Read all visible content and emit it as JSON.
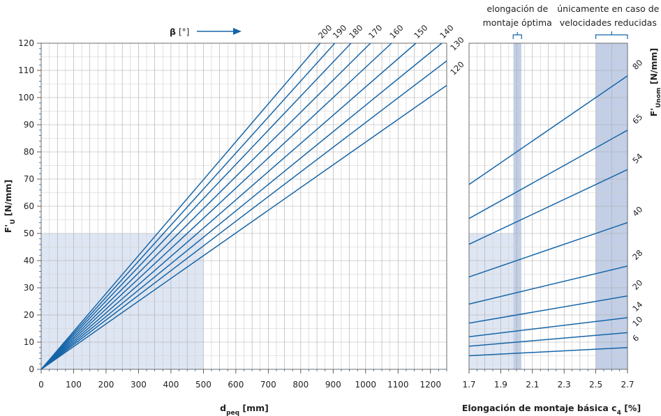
{
  "chart_data": [
    {
      "type": "line",
      "title": "",
      "xlabel": "dpeq [mm]",
      "xlabel_main": "d",
      "xlabel_sub": "peq",
      "xlabel_unit": " [mm]",
      "ylabel_main": "F'",
      "ylabel_sub": "U",
      "ylabel_unit": " [N/mm]",
      "xlim": [
        0,
        1250
      ],
      "ylim": [
        0,
        120
      ],
      "x_ticks": [
        "0",
        "100",
        "200",
        "300",
        "400",
        "500",
        "600",
        "700",
        "800",
        "900",
        "1000",
        "1100",
        "1200"
      ],
      "y_ticks": [
        "0",
        "10",
        "20",
        "30",
        "40",
        "50",
        "60",
        "70",
        "80",
        "90",
        "100",
        "110",
        "120"
      ],
      "grid": true,
      "highlight_region": {
        "x": [
          0,
          500
        ],
        "y": [
          0,
          50
        ]
      },
      "beta_label_main": "β",
      "beta_label_unit": " [°]",
      "series": [
        {
          "name": "200",
          "points": [
            [
              0,
              0
            ],
            [
              860,
              120
            ]
          ]
        },
        {
          "name": "190",
          "points": [
            [
              0,
              0
            ],
            [
              905,
              120
            ]
          ]
        },
        {
          "name": "180",
          "points": [
            [
              0,
              0
            ],
            [
              955,
              120
            ]
          ]
        },
        {
          "name": "170",
          "points": [
            [
              0,
              0
            ],
            [
              1015,
              120
            ]
          ]
        },
        {
          "name": "160",
          "points": [
            [
              0,
              0
            ],
            [
              1080,
              120
            ]
          ]
        },
        {
          "name": "150",
          "points": [
            [
              0,
              0
            ],
            [
              1155,
              120
            ]
          ]
        },
        {
          "name": "140",
          "points": [
            [
              0,
              0
            ],
            [
              1235,
              120
            ]
          ]
        },
        {
          "name": "130",
          "points": [
            [
              0,
              0
            ],
            [
              1250,
              113.5
            ]
          ]
        },
        {
          "name": "120",
          "points": [
            [
              0,
              0
            ],
            [
              1250,
              104.5
            ]
          ]
        }
      ]
    },
    {
      "type": "line",
      "title": "",
      "xlabel_main": "Elongación de montaje básica c",
      "xlabel_sub": "4",
      "xlabel_unit": " [%]",
      "ylabel_main": "F'",
      "ylabel_sub": "Unom",
      "ylabel_unit": " [N/mm]",
      "xlim": [
        1.7,
        2.7
      ],
      "ylim": [
        0,
        120
      ],
      "x_ticks": [
        "1.7",
        "1.9",
        "2.1",
        "2.3",
        "2.5",
        "2.7"
      ],
      "grid": true,
      "optimal_band": {
        "x": [
          1.98,
          2.03
        ],
        "label_line1": "elongación de",
        "label_line2": "montaje óptima"
      },
      "reduced_speed_band": {
        "x": [
          2.5,
          2.7
        ],
        "label_line1": "únicamente en caso de",
        "label_line2": "velocidades reducidas"
      },
      "highlight_region": {
        "x": [
          1.7,
          2.03
        ],
        "y": [
          0,
          50
        ]
      },
      "series": [
        {
          "name": "80",
          "points": [
            [
              1.7,
              68
            ],
            [
              2.7,
              108
            ]
          ]
        },
        {
          "name": "65",
          "points": [
            [
              1.7,
              55.5
            ],
            [
              2.7,
              88
            ]
          ]
        },
        {
          "name": "54",
          "points": [
            [
              1.7,
              46
            ],
            [
              2.7,
              73.5
            ]
          ]
        },
        {
          "name": "40",
          "points": [
            [
              1.7,
              34
            ],
            [
              2.7,
              54
            ]
          ]
        },
        {
          "name": "28",
          "points": [
            [
              1.7,
              24
            ],
            [
              2.7,
              38
            ]
          ]
        },
        {
          "name": "20",
          "points": [
            [
              1.7,
              17
            ],
            [
              2.7,
              27
            ]
          ]
        },
        {
          "name": "14",
          "points": [
            [
              1.7,
              12
            ],
            [
              2.7,
              19
            ]
          ]
        },
        {
          "name": "10",
          "points": [
            [
              1.7,
              8.5
            ],
            [
              2.7,
              13.5
            ]
          ]
        },
        {
          "name": "6",
          "points": [
            [
              1.7,
              5
            ],
            [
              2.7,
              8
            ]
          ]
        }
      ]
    }
  ]
}
